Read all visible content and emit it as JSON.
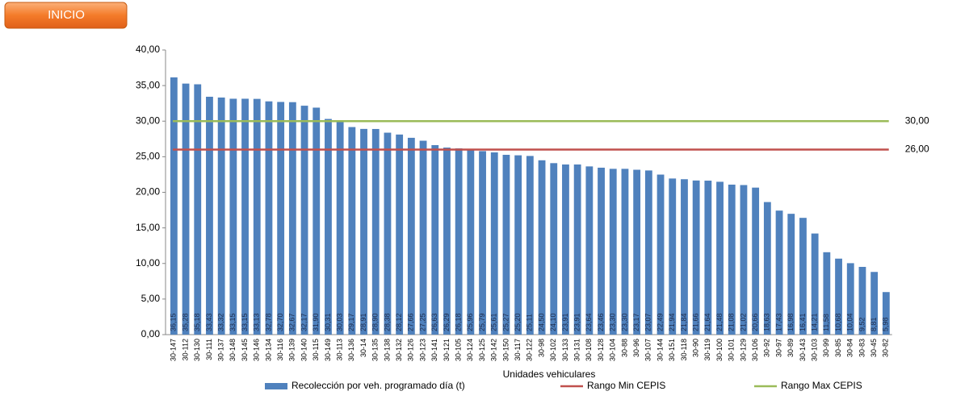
{
  "button": {
    "label": "INICIO"
  },
  "chart_data": {
    "type": "bar",
    "xlabel": "Unidades vehiculares",
    "categories": [
      "30-147",
      "30-112",
      "30-130",
      "30-111",
      "30-137",
      "30-148",
      "30-145",
      "30-146",
      "30-134",
      "30-116",
      "30-139",
      "30-140",
      "30-115",
      "30-149",
      "30-113",
      "30-136",
      "30-14",
      "30-135",
      "30-138",
      "30-132",
      "30-126",
      "30-123",
      "30-141",
      "30-121",
      "30-105",
      "30-124",
      "30-125",
      "30-142",
      "30-150",
      "30-117",
      "30-122",
      "30-98",
      "30-102",
      "30-133",
      "30-131",
      "30-108",
      "30-128",
      "30-104",
      "30-88",
      "30-96",
      "30-107",
      "30-144",
      "30-151",
      "30-118",
      "30-90",
      "30-119",
      "30-100",
      "30-101",
      "30-129",
      "30-106",
      "30-92",
      "30-97",
      "30-89",
      "30-143",
      "30-103",
      "30-99",
      "30-85",
      "30-84",
      "30-83",
      "30-45",
      "30-82"
    ],
    "series": [
      {
        "name": "Recolección por veh. programado día (t)",
        "color": "#4f81bd",
        "values": [
          36.15,
          35.28,
          35.18,
          33.43,
          33.32,
          33.15,
          33.15,
          33.13,
          32.78,
          32.7,
          32.67,
          32.17,
          31.9,
          30.31,
          30.03,
          29.17,
          28.91,
          28.9,
          28.38,
          28.12,
          27.66,
          27.25,
          26.63,
          26.29,
          26.18,
          25.96,
          25.79,
          25.61,
          25.27,
          25.2,
          25.11,
          24.5,
          24.1,
          23.91,
          23.91,
          23.64,
          23.46,
          23.3,
          23.3,
          23.17,
          23.07,
          22.49,
          21.94,
          21.84,
          21.66,
          21.64,
          21.48,
          21.08,
          21.02,
          20.66,
          18.63,
          17.43,
          16.98,
          16.41,
          14.21,
          11.58,
          10.68,
          10.04,
          9.52,
          8.81,
          5.98
        ],
        "value_labels": [
          "36,15",
          "35,28",
          "35,18",
          "33,43",
          "33,32",
          "33,15",
          "33,15",
          "33,13",
          "32,78",
          "32,70",
          "32,67",
          "32,17",
          "31,90",
          "30,31",
          "30,03",
          "29,17",
          "28,91",
          "28,90",
          "28,38",
          "28,12",
          "27,66",
          "27,25",
          "26,63",
          "26,29",
          "26,18",
          "25,96",
          "25,79",
          "25,61",
          "25,27",
          "25,20",
          "25,11",
          "24,50",
          "24,10",
          "23,91",
          "23,91",
          "23,64",
          "23,46",
          "23,30",
          "23,30",
          "23,17",
          "23,07",
          "22,49",
          "21,94",
          "21,84",
          "21,66",
          "21,64",
          "21,48",
          "21,08",
          "21,02",
          "20,66",
          "18,63",
          "17,43",
          "16,98",
          "16,41",
          "14,21",
          "11,58",
          "10,68",
          "10,04",
          "9,52",
          "8,81",
          "5,98"
        ]
      },
      {
        "name": "Rango Min CEPIS",
        "color": "#c0504d",
        "type": "line",
        "value": 26,
        "value_label": "26,00"
      },
      {
        "name": "Rango Max CEPIS",
        "color": "#9bbb59",
        "type": "line",
        "value": 30,
        "value_label": "30,00"
      }
    ],
    "ylim": [
      0,
      40
    ],
    "yticks": [
      {
        "value": 0,
        "label": "0,00"
      },
      {
        "value": 5,
        "label": "5,00"
      },
      {
        "value": 10,
        "label": "10,00"
      },
      {
        "value": 15,
        "label": "15,00"
      },
      {
        "value": 20,
        "label": "20,00"
      },
      {
        "value": 25,
        "label": "25,00"
      },
      {
        "value": 30,
        "label": "30,00"
      },
      {
        "value": 35,
        "label": "35,00"
      },
      {
        "value": 40,
        "label": "40,00"
      }
    ]
  }
}
